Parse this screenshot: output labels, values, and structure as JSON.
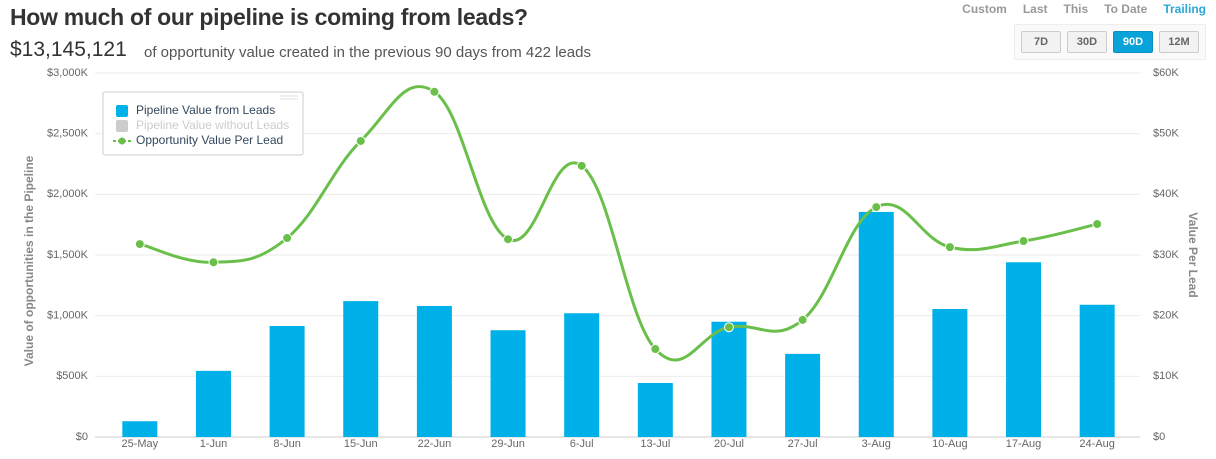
{
  "header": {
    "title": "How much of our pipeline is coming from leads?",
    "amount": "$13,145,121",
    "description": "of opportunity value created in the previous 90 days from 422 leads"
  },
  "controls": {
    "modes": [
      "Custom",
      "Last",
      "This",
      "To Date",
      "Trailing"
    ],
    "active_mode": "Trailing",
    "ranges": [
      "7D",
      "30D",
      "90D",
      "12M"
    ],
    "active_range": "90D"
  },
  "chart_data": {
    "type": "combo",
    "categories": [
      "25-May",
      "1-Jun",
      "8-Jun",
      "15-Jun",
      "22-Jun",
      "29-Jun",
      "6-Jul",
      "13-Jul",
      "20-Jul",
      "27-Jul",
      "3-Aug",
      "10-Aug",
      "17-Aug",
      "24-Aug"
    ],
    "series": [
      {
        "name": "Pipeline Value from Leads",
        "type": "bar",
        "color": "#00b0e8",
        "values": [
          130,
          545,
          915,
          1120,
          1080,
          880,
          1020,
          445,
          950,
          685,
          1855,
          1055,
          1440,
          1090
        ]
      },
      {
        "name": "Pipeline Value without Leads",
        "type": "bar",
        "color": "#cccccc",
        "hidden": true
      },
      {
        "name": "Opportunity Value Per Lead",
        "type": "line",
        "color": "#6abf4b",
        "axis": "y2",
        "values": [
          31.8,
          28.8,
          32.8,
          48.8,
          56.9,
          32.6,
          44.7,
          14.5,
          18.1,
          19.3,
          37.9,
          31.3,
          32.3,
          35.1
        ]
      }
    ],
    "ylabel": "Value of opportunities in the Pipeline",
    "y2label": "Value Per Lead",
    "ylim": [
      0,
      3000
    ],
    "yticks": [
      {
        "value": 0,
        "label": "$0"
      },
      {
        "value": 500,
        "label": "$500K"
      },
      {
        "value": 1000,
        "label": "$1,000K"
      },
      {
        "value": 1500,
        "label": "$1,500K"
      },
      {
        "value": 2000,
        "label": "$2,000K"
      },
      {
        "value": 2500,
        "label": "$2,500K"
      },
      {
        "value": 3000,
        "label": "$3,000K"
      }
    ],
    "y2lim": [
      0,
      60
    ],
    "y2ticks": [
      {
        "value": 0,
        "label": "$0"
      },
      {
        "value": 10,
        "label": "$10K"
      },
      {
        "value": 20,
        "label": "$20K"
      },
      {
        "value": 30,
        "label": "$30K"
      },
      {
        "value": 40,
        "label": "$40K"
      },
      {
        "value": 50,
        "label": "$50K"
      },
      {
        "value": 60,
        "label": "$60K"
      }
    ],
    "grid": true,
    "legend": "top-left"
  }
}
